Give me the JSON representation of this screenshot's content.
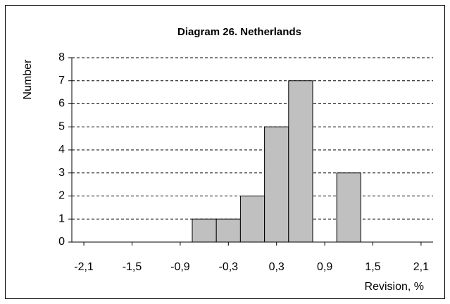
{
  "chart_data": {
    "type": "histogram",
    "title": "Diagram 26.  Netherlands",
    "x_label": "Revision, %",
    "y_label": "Number",
    "bins": [
      -0.75,
      -0.45,
      -0.15,
      0.15,
      0.45,
      0.75,
      1.05,
      1.35
    ],
    "values": [
      1,
      1,
      2,
      5,
      7,
      0,
      3
    ],
    "color": "#c0c0c0",
    "xlim": [
      -2.25,
      2.25
    ],
    "xticks": [
      {
        "value": -2.1,
        "label": "-2,1"
      },
      {
        "value": -1.5,
        "label": "-1,5"
      },
      {
        "value": -0.9,
        "label": "-0,9"
      },
      {
        "value": -0.3,
        "label": "-0,3"
      },
      {
        "value": 0.3,
        "label": "0,3"
      },
      {
        "value": 0.9,
        "label": "0,9"
      },
      {
        "value": 1.5,
        "label": "1,5"
      },
      {
        "value": 2.1,
        "label": "2,1"
      }
    ],
    "ylim": [
      0,
      8
    ],
    "yticks": [
      0,
      1,
      2,
      3,
      4,
      5,
      6,
      7,
      8
    ],
    "grid": true
  }
}
